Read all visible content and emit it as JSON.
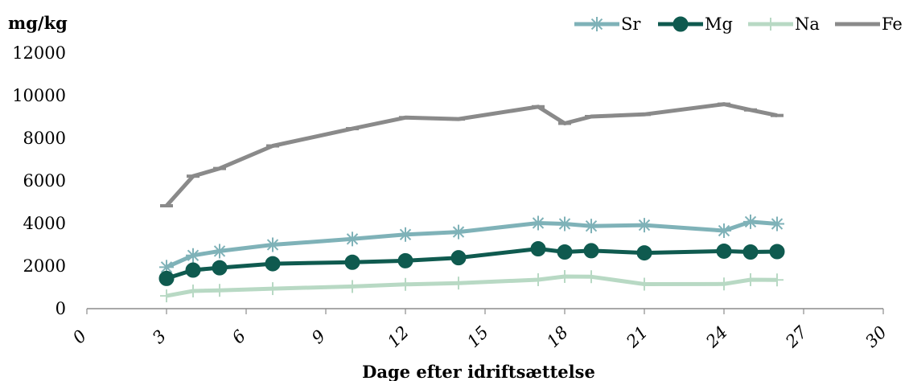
{
  "chart_data": {
    "type": "line",
    "title": "",
    "ylabel": "mg/kg",
    "xlabel": "Dage efter idriftsættelse",
    "xlim": [
      0,
      30
    ],
    "ylim": [
      0,
      12000
    ],
    "x_ticks": [
      "0",
      "3",
      "6",
      "9",
      "12",
      "15",
      "18",
      "21",
      "24",
      "27",
      "30"
    ],
    "y_ticks": [
      "0",
      "2000",
      "4000",
      "6000",
      "8000",
      "10000",
      "12000"
    ],
    "grid": false,
    "legend_position": "top-right",
    "series": [
      {
        "name": "Sr",
        "color": "#7fb2b8",
        "marker": "asterisk",
        "points": [
          [
            3,
            1950
          ],
          [
            4,
            2500
          ],
          [
            5,
            2700
          ],
          [
            7,
            3000
          ],
          [
            10,
            3270
          ],
          [
            12,
            3480
          ],
          [
            14,
            3600
          ],
          [
            17,
            4020
          ],
          [
            18,
            3980
          ],
          [
            19,
            3880
          ],
          [
            21,
            3920
          ],
          [
            24,
            3660
          ],
          [
            25,
            4080
          ],
          [
            26,
            3980
          ]
        ]
      },
      {
        "name": "Mg",
        "color": "#0f5a4f",
        "marker": "circle",
        "points": [
          [
            3,
            1420
          ],
          [
            4,
            1810
          ],
          [
            5,
            1920
          ],
          [
            7,
            2110
          ],
          [
            10,
            2180
          ],
          [
            12,
            2250
          ],
          [
            14,
            2390
          ],
          [
            17,
            2810
          ],
          [
            18,
            2660
          ],
          [
            19,
            2720
          ],
          [
            21,
            2620
          ],
          [
            24,
            2700
          ],
          [
            25,
            2660
          ],
          [
            26,
            2680
          ]
        ]
      },
      {
        "name": "Na",
        "color": "#b8d9c4",
        "marker": "plus",
        "points": [
          [
            3,
            600
          ],
          [
            4,
            830
          ],
          [
            5,
            860
          ],
          [
            7,
            940
          ],
          [
            10,
            1040
          ],
          [
            12,
            1140
          ],
          [
            14,
            1200
          ],
          [
            17,
            1360
          ],
          [
            18,
            1510
          ],
          [
            19,
            1500
          ],
          [
            21,
            1150
          ],
          [
            24,
            1160
          ],
          [
            25,
            1360
          ],
          [
            26,
            1350
          ]
        ]
      },
      {
        "name": "Fe",
        "color": "#8a8a8a",
        "marker": "dash",
        "points": [
          [
            3,
            4830
          ],
          [
            4,
            6220
          ],
          [
            5,
            6580
          ],
          [
            7,
            7640
          ],
          [
            10,
            8450
          ],
          [
            12,
            8970
          ],
          [
            14,
            8900
          ],
          [
            17,
            9480
          ],
          [
            18,
            8700
          ],
          [
            19,
            9020
          ],
          [
            21,
            9120
          ],
          [
            24,
            9600
          ],
          [
            25,
            9330
          ],
          [
            26,
            9070
          ]
        ]
      }
    ]
  }
}
